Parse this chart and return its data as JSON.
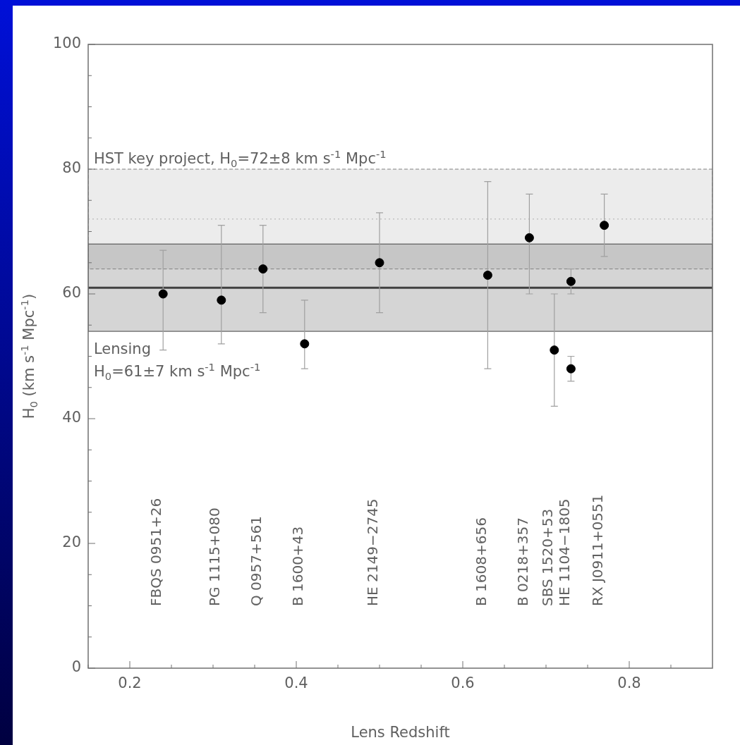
{
  "chart_data": {
    "type": "scatter",
    "xlabel": "Lens Redshift",
    "ylabel": "H$_{0}$ (km s$^{-1}$ Mpc$^{-1}$)",
    "x": [
      0.24,
      0.31,
      0.36,
      0.41,
      0.5,
      0.63,
      0.68,
      0.71,
      0.73,
      0.73,
      0.77
    ],
    "series": [
      {
        "color": "#000000",
        "values": [
          60,
          59,
          64,
          52,
          65,
          63,
          69,
          51,
          62,
          48,
          71
        ],
        "errors": [
          [
            51,
            67
          ],
          [
            52,
            71
          ],
          [
            57,
            71
          ],
          [
            48,
            59
          ],
          [
            57,
            73
          ],
          [
            48,
            78
          ],
          [
            60,
            76
          ],
          [
            42,
            60
          ],
          [
            60,
            64
          ],
          [
            46,
            50
          ],
          [
            66,
            76
          ]
        ]
      }
    ],
    "xlim": [
      0.15,
      0.9
    ],
    "xticks": [
      {
        "value": 0.15,
        "label": null
      },
      0.2,
      {
        "value": 0.25,
        "label": null
      },
      {
        "value": 0.3,
        "label": null
      },
      {
        "value": 0.35,
        "label": null
      },
      0.4,
      {
        "value": 0.45,
        "label": null
      },
      {
        "value": 0.5,
        "label": null
      },
      {
        "value": 0.55,
        "label": null
      },
      0.6,
      {
        "value": 0.65,
        "label": null
      },
      {
        "value": 0.7,
        "label": null
      },
      {
        "value": 0.75,
        "label": null
      },
      0.8,
      {
        "value": 0.85,
        "label": null
      }
    ],
    "ylim": [
      0,
      100
    ],
    "yticks": [
      0,
      {
        "value": 5,
        "label": null
      },
      {
        "value": 10,
        "label": null
      },
      {
        "value": 15,
        "label": null
      },
      20,
      {
        "value": 25,
        "label": null
      },
      {
        "value": 30,
        "label": null
      },
      {
        "value": 35,
        "label": null
      },
      40,
      {
        "value": 45,
        "label": null
      },
      {
        "value": 50,
        "label": null
      },
      {
        "value": 55,
        "label": null
      },
      60,
      {
        "value": 65,
        "label": null
      },
      {
        "value": 70,
        "label": null
      },
      {
        "value": 75,
        "label": null
      },
      80,
      {
        "value": 85,
        "label": null
      },
      {
        "value": 90,
        "label": null
      },
      {
        "value": 95,
        "label": null
      },
      100
    ],
    "bands": [
      {
        "axis": "y",
        "from": 64,
        "to": 80,
        "label": "HST key project, H$_{0}$=72±8 km s$^{-1}$ Mpc$^{-1}$",
        "color": "#808080"
      },
      {
        "axis": "y",
        "from": 54,
        "to": 68,
        "label": "Lensing\nH$_{0}$=61±7 km s$^{-1}$ Mpc$^{-1}$",
        "color": "#404040"
      }
    ],
    "ref_lines": [
      {
        "axis": "y",
        "value": 61,
        "color": "#404040",
        "line_style": "solid"
      },
      {
        "axis": "y",
        "value": 72,
        "color": "#b0b0b0",
        "line_style": "dotted"
      }
    ],
    "annotations": [
      "FBQS 0951+26",
      "PG 1115+080",
      "Q 0957+561",
      "B 1600+43",
      "HE 2149−2745",
      "B 1608+656",
      "B 0218+357",
      "SBS 1520+53",
      "HE 1104−1805",
      "RX J0911+0551"
    ],
    "marker": "circle",
    "grid": false,
    "legend": false
  }
}
